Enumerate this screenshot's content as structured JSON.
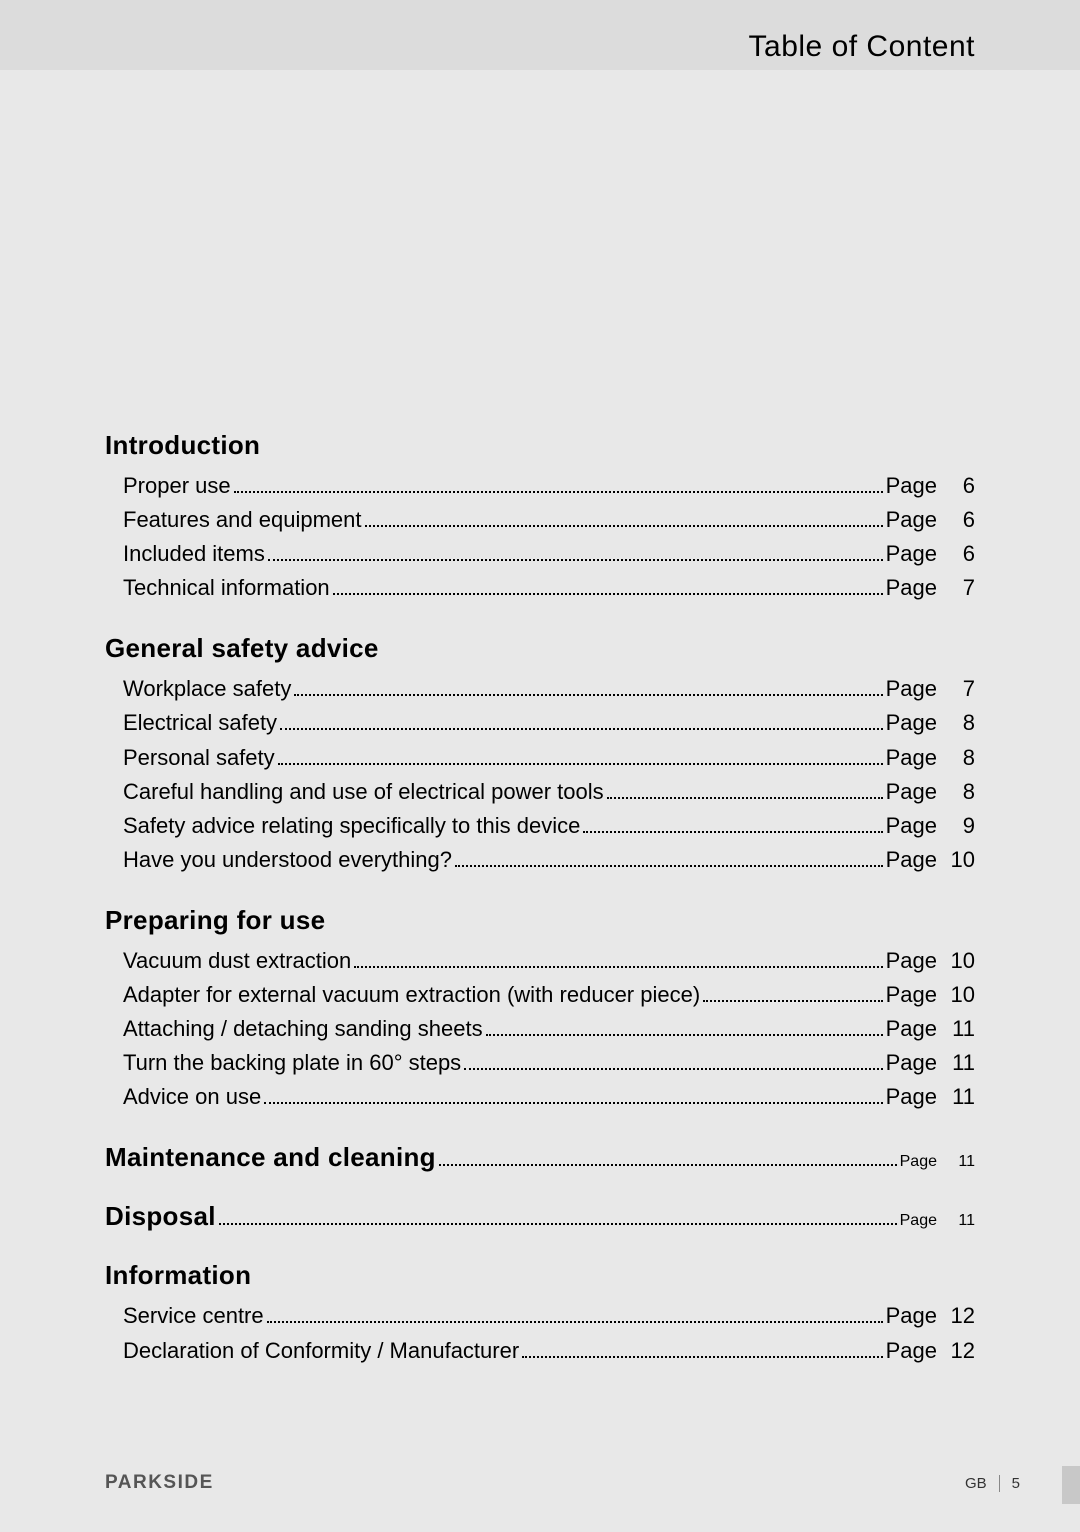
{
  "header": {
    "title": "Table of Content"
  },
  "toc": {
    "page_word": "Page",
    "sections": [
      {
        "heading": "Introduction",
        "inline": false,
        "items": [
          {
            "label": "Proper use",
            "page": "6"
          },
          {
            "label": "Features and equipment",
            "page": "6"
          },
          {
            "label": "Included items",
            "page": "6"
          },
          {
            "label": "Technical information",
            "page": "7"
          }
        ]
      },
      {
        "heading": "General safety advice",
        "inline": false,
        "items": [
          {
            "label": "Workplace safety",
            "page": "7"
          },
          {
            "label": "Electrical safety",
            "page": "8"
          },
          {
            "label": "Personal safety",
            "page": "8"
          },
          {
            "label": "Careful handling and use of electrical power tools",
            "page": "8"
          },
          {
            "label": "Safety advice relating specifically to this device",
            "page": "9"
          },
          {
            "label": "Have you understood everything?",
            "page": "10"
          }
        ]
      },
      {
        "heading": "Preparing for use",
        "inline": false,
        "items": [
          {
            "label": "Vacuum dust extraction",
            "page": "10"
          },
          {
            "label": "Adapter for external vacuum extraction (with reducer piece)",
            "page": "10"
          },
          {
            "label": "Attaching / detaching sanding sheets",
            "page": "11"
          },
          {
            "label": "Turn the backing plate in 60° steps",
            "page": "11"
          },
          {
            "label": "Advice on use",
            "page": "11"
          }
        ]
      },
      {
        "heading": "Maintenance and cleaning",
        "inline": true,
        "page": "11",
        "items": []
      },
      {
        "heading": "Disposal",
        "inline": true,
        "page": "11",
        "items": []
      },
      {
        "heading": "Information",
        "inline": false,
        "items": [
          {
            "label": "Service centre",
            "page": "12"
          },
          {
            "label": "Declaration of Conformity / Manufacturer",
            "page": "12"
          }
        ]
      }
    ]
  },
  "footer": {
    "brand": "PARKSIDE",
    "lang": "GB",
    "page_number": "5"
  },
  "colors": {
    "page_bg": "#e8e8e8",
    "header_bg": "#dcdcdc",
    "text": "#000000",
    "brand": "#555555",
    "tab": "#c8c8c8"
  },
  "typography": {
    "header_title_size": 30,
    "section_heading_size": 26,
    "body_size": 22,
    "footer_size": 15
  }
}
